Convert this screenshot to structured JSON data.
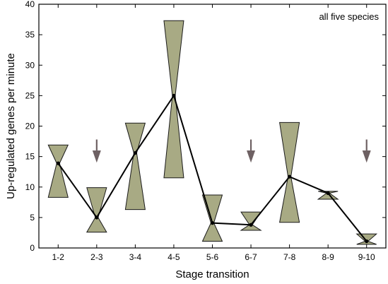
{
  "chart_data": {
    "type": "line",
    "title": "",
    "xlabel": "Stage transition",
    "ylabel": "Up-regulated genes per minute",
    "annotation": "all five species",
    "categories": [
      "1-2",
      "2-3",
      "3-4",
      "4-5",
      "5-6",
      "6-7",
      "7-8",
      "8-9",
      "9-10"
    ],
    "ylim": [
      0,
      40
    ],
    "yticks": [
      "0",
      "5",
      "10",
      "15",
      "20",
      "25",
      "30",
      "35",
      "40"
    ],
    "series": [
      {
        "values": [
          13.9,
          5.0,
          15.6,
          25.0,
          4.1,
          3.8,
          11.7,
          9.0,
          1.1
        ]
      }
    ],
    "intervals": [
      {
        "low": 8.3,
        "high": 16.9
      },
      {
        "low": 2.6,
        "high": 9.9
      },
      {
        "low": 6.3,
        "high": 20.5
      },
      {
        "low": 11.5,
        "high": 37.3
      },
      {
        "low": 1.1,
        "high": 8.7
      },
      {
        "low": 2.9,
        "high": 5.9
      },
      {
        "low": 4.2,
        "high": 20.6
      },
      {
        "low": 8.0,
        "high": 9.3
      },
      {
        "low": 0.6,
        "high": 2.3
      }
    ],
    "arrow_categories": [
      "2-3",
      "6-7",
      "9-10"
    ],
    "grid": false,
    "colors": {
      "interval_fill": "#a8aa84",
      "interval_stroke": "#1a1a1a",
      "line": "#000000",
      "arrow": "#6e6163"
    }
  }
}
